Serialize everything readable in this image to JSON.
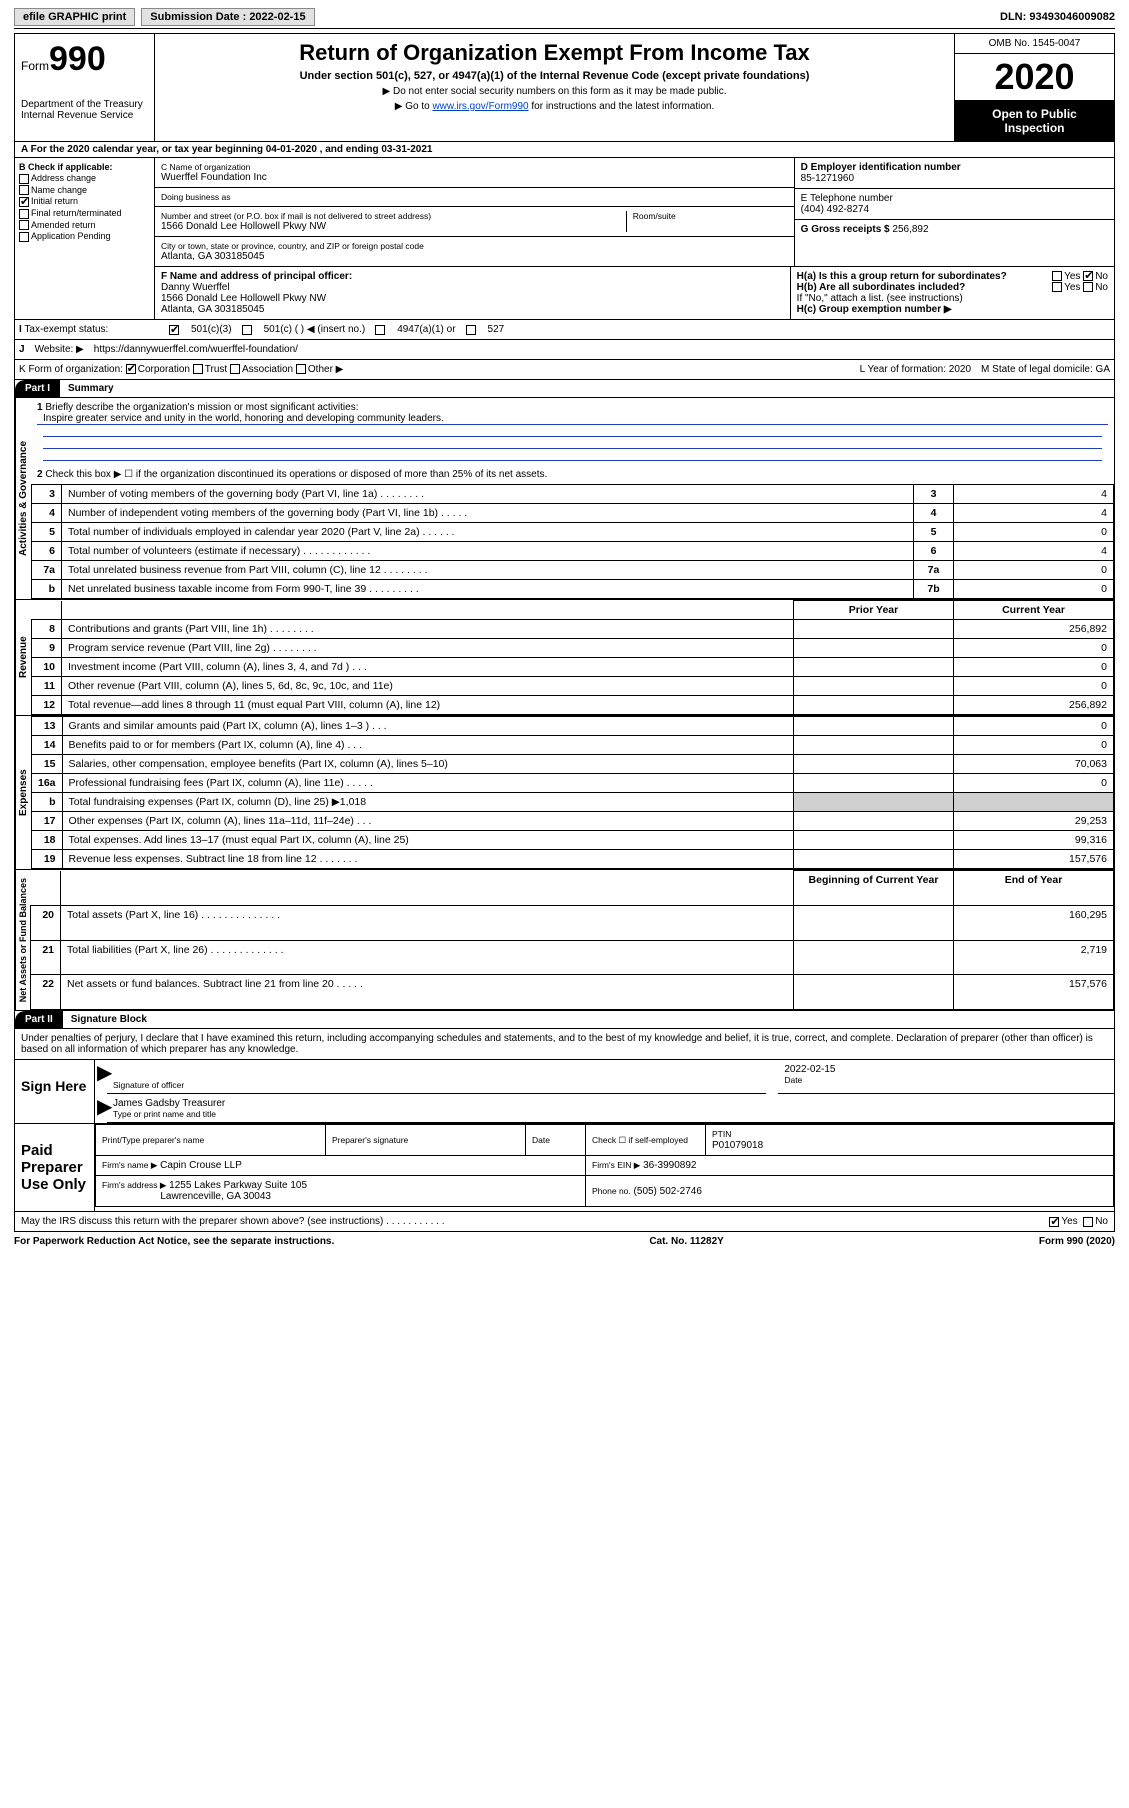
{
  "topbar": {
    "efile": "efile GRAPHIC print",
    "submission_label": "Submission Date : 2022-02-15",
    "dln": "DLN: 93493046009082"
  },
  "header": {
    "form_label": "Form",
    "form_number": "990",
    "dept": "Department of the Treasury\nInternal Revenue Service",
    "title": "Return of Organization Exempt From Income Tax",
    "sub": "Under section 501(c), 527, or 4947(a)(1) of the Internal Revenue Code (except private foundations)",
    "note1": "▶ Do not enter social security numbers on this form as it may be made public.",
    "note2_pre": "▶ Go to ",
    "note2_link": "www.irs.gov/Form990",
    "note2_post": " for instructions and the latest information.",
    "omb": "OMB No. 1545-0047",
    "year": "2020",
    "open": "Open to Public Inspection"
  },
  "period": "For the 2020 calendar year, or tax year beginning 04-01-2020   , and ending 03-31-2021",
  "box_b": {
    "label": "B Check if applicable:",
    "items": [
      "Address change",
      "Name change",
      "Initial return",
      "Final return/terminated",
      "Amended return",
      "Application Pending"
    ],
    "checked_idx": 2
  },
  "box_c": {
    "name_label": "C Name of organization",
    "name": "Wuerffel Foundation Inc",
    "dba_label": "Doing business as",
    "dba": "",
    "street_label": "Number and street (or P.O. box if mail is not delivered to street address)",
    "room_label": "Room/suite",
    "street": "1566 Donald Lee Hollowell Pkwy NW",
    "city_label": "City or town, state or province, country, and ZIP or foreign postal code",
    "city": "Atlanta, GA  303185045"
  },
  "box_d": {
    "label": "D Employer identification number",
    "val": "85-1271960"
  },
  "box_e": {
    "label": "E Telephone number",
    "val": "(404) 492-8274"
  },
  "box_g": {
    "label": "G Gross receipts $",
    "val": "256,892"
  },
  "box_f": {
    "label": "F  Name and address of principal officer:",
    "name": "Danny Wuerffel",
    "addr1": "1566 Donald Lee Hollowell Pkwy NW",
    "addr2": "Atlanta, GA  303185045"
  },
  "box_h": {
    "a": "H(a)  Is this a group return for subordinates?",
    "a_yes": "Yes",
    "a_no": "No",
    "a_checked": "No",
    "b": "H(b)  Are all subordinates included?",
    "b_yes": "Yes",
    "b_no": "No",
    "note": "If \"No,\" attach a list. (see instructions)",
    "c": "H(c)  Group exemption number ▶"
  },
  "box_i": {
    "label": "Tax-exempt status:",
    "opts": [
      "501(c)(3)",
      "501(c) (  ) ◀ (insert no.)",
      "4947(a)(1) or",
      "527"
    ],
    "checked_idx": 0
  },
  "box_j": {
    "label": "Website: ▶",
    "val": "https://dannywuerffel.com/wuerffel-foundation/"
  },
  "box_k": {
    "label": "K Form of organization:",
    "opts": [
      "Corporation",
      "Trust",
      "Association",
      "Other ▶"
    ],
    "checked_idx": 0
  },
  "box_l": {
    "label": "L Year of formation:",
    "val": "2020"
  },
  "box_m": {
    "label": "M State of legal domicile:",
    "val": "GA"
  },
  "part1": {
    "tag": "Part I",
    "title": "Summary"
  },
  "governance": {
    "label": "Activities & Governance",
    "l1": "Briefly describe the organization's mission or most significant activities:",
    "l1_text": "Inspire greater service and unity in the world, honoring and developing community leaders.",
    "l2": "Check this box ▶ ☐  if the organization discontinued its operations or disposed of more than 25% of its net assets.",
    "rows": [
      {
        "n": "3",
        "d": "Number of voting members of the governing body (Part VI, line 1a)   .    .    .    .    .    .    .    .",
        "ln": "3",
        "v": "4"
      },
      {
        "n": "4",
        "d": "Number of independent voting members of the governing body (Part VI, line 1b)   .    .    .    .    .",
        "ln": "4",
        "v": "4"
      },
      {
        "n": "5",
        "d": "Total number of individuals employed in calendar year 2020 (Part V, line 2a)   .    .    .    .    .    .",
        "ln": "5",
        "v": "0"
      },
      {
        "n": "6",
        "d": "Total number of volunteers (estimate if necessary)   .    .    .    .    .    .    .    .    .    .    .    .",
        "ln": "6",
        "v": "4"
      },
      {
        "n": "7a",
        "d": "Total unrelated business revenue from Part VIII, column (C), line 12   .    .    .    .    .    .    .    .",
        "ln": "7a",
        "v": "0"
      },
      {
        "n": "b",
        "d": "Net unrelated business taxable income from Form 990-T, line 39   .    .    .    .    .    .    .    .    .",
        "ln": "7b",
        "v": "0"
      }
    ]
  },
  "revenue": {
    "label": "Revenue",
    "hdr_prior": "Prior Year",
    "hdr_curr": "Current Year",
    "rows": [
      {
        "n": "8",
        "d": "Contributions and grants (Part VIII, line 1h)   .    .    .    .    .    .    .    .",
        "p": "",
        "c": "256,892"
      },
      {
        "n": "9",
        "d": "Program service revenue (Part VIII, line 2g)   .    .    .    .    .    .    .    .",
        "p": "",
        "c": "0"
      },
      {
        "n": "10",
        "d": "Investment income (Part VIII, column (A), lines 3, 4, and 7d )   .    .    .",
        "p": "",
        "c": "0"
      },
      {
        "n": "11",
        "d": "Other revenue (Part VIII, column (A), lines 5, 6d, 8c, 9c, 10c, and 11e)",
        "p": "",
        "c": "0"
      },
      {
        "n": "12",
        "d": "Total revenue—add lines 8 through 11 (must equal Part VIII, column (A), line 12)",
        "p": "",
        "c": "256,892"
      }
    ]
  },
  "expenses": {
    "label": "Expenses",
    "rows": [
      {
        "n": "13",
        "d": "Grants and similar amounts paid (Part IX, column (A), lines 1–3 )   .    .    .",
        "p": "",
        "c": "0"
      },
      {
        "n": "14",
        "d": "Benefits paid to or for members (Part IX, column (A), line 4)   .    .    .",
        "p": "",
        "c": "0"
      },
      {
        "n": "15",
        "d": "Salaries, other compensation, employee benefits (Part IX, column (A), lines 5–10)",
        "p": "",
        "c": "70,063"
      },
      {
        "n": "16a",
        "d": "Professional fundraising fees (Part IX, column (A), line 11e)   .    .    .    .    .",
        "p": "",
        "c": "0"
      },
      {
        "n": "b",
        "d": "Total fundraising expenses (Part IX, column (D), line 25) ▶1,018",
        "p": "SHADE",
        "c": "SHADE"
      },
      {
        "n": "17",
        "d": "Other expenses (Part IX, column (A), lines 11a–11d, 11f–24e)   .    .    .",
        "p": "",
        "c": "29,253"
      },
      {
        "n": "18",
        "d": "Total expenses. Add lines 13–17 (must equal Part IX, column (A), line 25)",
        "p": "",
        "c": "99,316"
      },
      {
        "n": "19",
        "d": "Revenue less expenses. Subtract line 18 from line 12   .    .    .    .    .    .    .",
        "p": "",
        "c": "157,576"
      }
    ]
  },
  "netassets": {
    "label": "Net Assets or Fund Balances",
    "hdr_begin": "Beginning of Current Year",
    "hdr_end": "End of Year",
    "rows": [
      {
        "n": "20",
        "d": "Total assets (Part X, line 16)   .    .    .    .    .    .    .    .    .    .    .    .    .    .",
        "p": "",
        "c": "160,295"
      },
      {
        "n": "21",
        "d": "Total liabilities (Part X, line 26)   .    .    .    .    .    .    .    .    .    .    .    .    .",
        "p": "",
        "c": "2,719"
      },
      {
        "n": "22",
        "d": "Net assets or fund balances. Subtract line 21 from line 20   .    .    .    .    .",
        "p": "",
        "c": "157,576"
      }
    ]
  },
  "part2": {
    "tag": "Part II",
    "title": "Signature Block",
    "decl": "Under penalties of perjury, I declare that I have examined this return, including accompanying schedules and statements, and to the best of my knowledge and belief, it is true, correct, and complete. Declaration of preparer (other than officer) is based on all information of which preparer has any knowledge."
  },
  "sign": {
    "label": "Sign Here",
    "sig_label": "Signature of officer",
    "date": "2022-02-15",
    "date_label": "Date",
    "name": "James Gadsby Treasurer",
    "name_label": "Type or print name and title"
  },
  "paid": {
    "label": "Paid Preparer Use Only",
    "r1": {
      "a": "Print/Type preparer's name",
      "b": "Preparer's signature",
      "c": "Date",
      "d_label": "Check ☐ if self-employed",
      "e_label": "PTIN",
      "e": "P01079018"
    },
    "r2": {
      "a_label": "Firm's name     ▶",
      "a": "Capin Crouse LLP",
      "b_label": "Firm's EIN ▶",
      "b": "36-3990892"
    },
    "r3": {
      "a_label": "Firm's address ▶",
      "a1": "1255 Lakes Parkway Suite 105",
      "a2": "Lawrenceville, GA  30043",
      "b_label": "Phone no.",
      "b": "(505) 502-2746"
    }
  },
  "discuss": {
    "q": "May the IRS discuss this return with the preparer shown above? (see instructions)   .    .    .    .    .    .    .    .    .    .    .",
    "yes": "Yes",
    "no": "No",
    "checked": "Yes"
  },
  "footer": {
    "a": "For Paperwork Reduction Act Notice, see the separate instructions.",
    "b": "Cat. No. 11282Y",
    "c": "Form 990 (2020)"
  }
}
